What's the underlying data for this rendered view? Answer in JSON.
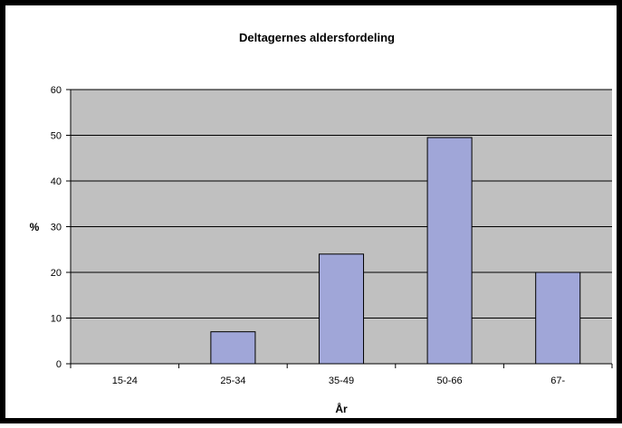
{
  "chart_data": {
    "type": "bar",
    "title": "Deltagernes aldersfordeling",
    "xlabel": "År",
    "ylabel": "%",
    "categories": [
      "15-24",
      "25-34",
      "35-49",
      "50-66",
      "67-"
    ],
    "values": [
      0,
      7,
      24,
      49.5,
      20
    ],
    "ylim": [
      0,
      60
    ],
    "yticks": [
      0,
      10,
      20,
      30,
      40,
      50,
      60
    ],
    "grid": true,
    "legend": "none",
    "colors": {
      "bar_fill": "#a0a6d8",
      "bar_stroke": "#000000",
      "plot_background": "#c0c0c0",
      "gridline": "#000000",
      "frame": "#000000",
      "background": "#ffffff"
    }
  }
}
